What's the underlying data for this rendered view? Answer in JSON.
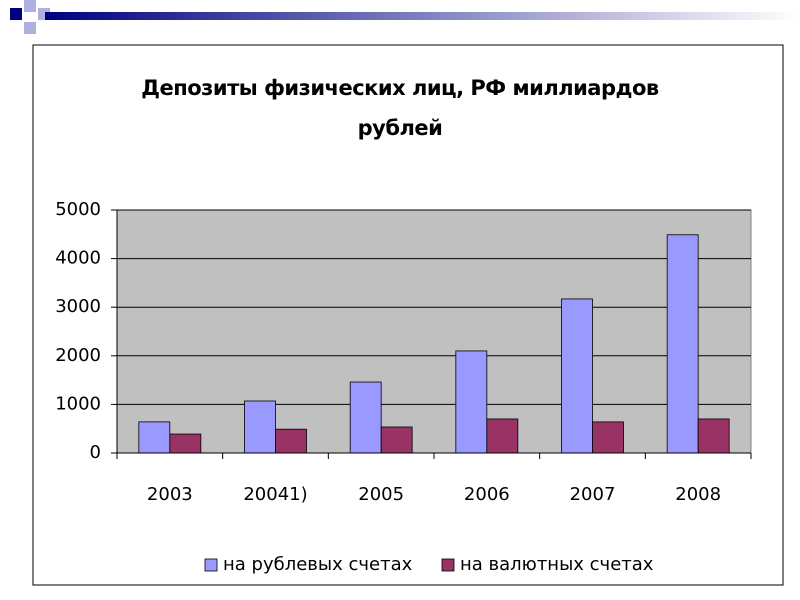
{
  "chart_data": {
    "type": "bar",
    "title": "Депозиты физических лиц, РФ миллиардов рублей",
    "categories": [
      "2003",
      "20041)",
      "2005",
      "2006",
      "2007",
      "2008"
    ],
    "series": [
      {
        "name": "на рублевых счетах",
        "color": "#9999ff",
        "values": [
          640,
          1070,
          1460,
          2100,
          3170,
          4490
        ]
      },
      {
        "name": "на валютных счетах",
        "color": "#993366",
        "values": [
          390,
          490,
          535,
          700,
          640,
          700
        ]
      }
    ],
    "ylim": [
      0,
      5000
    ],
    "yticks": [
      0,
      1000,
      2000,
      3000,
      4000,
      5000
    ],
    "grid": true,
    "legend": "bottom"
  }
}
